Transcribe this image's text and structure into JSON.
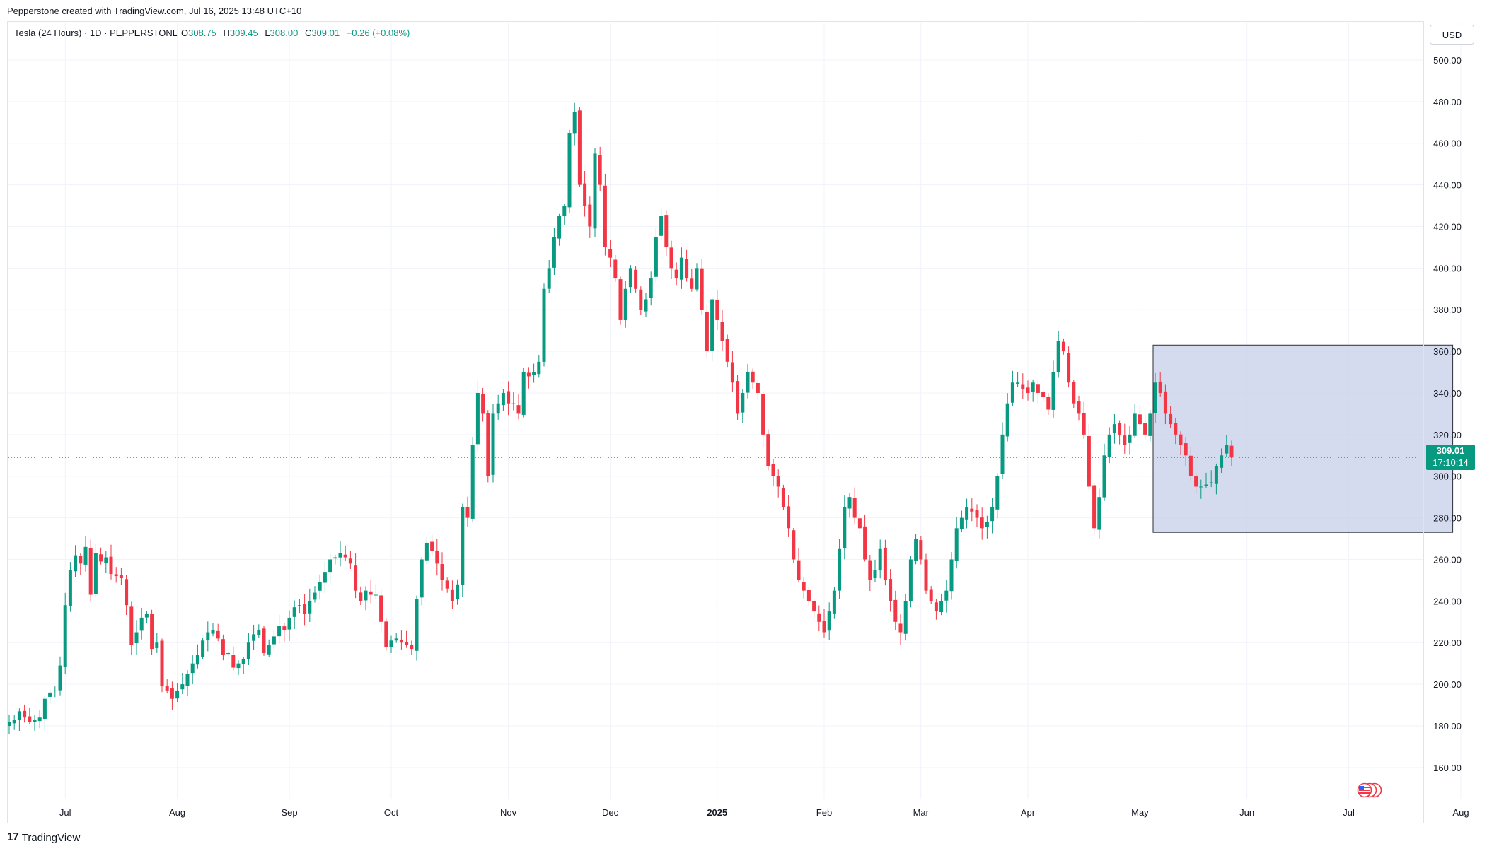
{
  "header": {
    "credit": "Pepperstone created with TradingView.com, Jul 16, 2025 13:48 UTC+10"
  },
  "legend": {
    "symbol": "Tesla (24 Hours) · 1D · PEPPERSTONE",
    "o_label": "O",
    "o_value": "308.75",
    "h_label": "H",
    "h_value": "309.45",
    "l_label": "L",
    "l_value": "308.00",
    "c_label": "C",
    "c_value": "309.01",
    "change": "+0.26 (+0.08%)"
  },
  "currency_button": "USD",
  "last_price": {
    "value": "309.01",
    "countdown": "17:10:14"
  },
  "footer": {
    "brand": "TradingView",
    "logo_mark": "17"
  },
  "colors": {
    "up": "#089981",
    "down": "#f23645",
    "grid": "#f0f3fa",
    "box_fill": "#c5cde8",
    "box_border": "#2a2e39"
  },
  "icons": {
    "flag": "us-flag-events-icon",
    "logo": "tradingview-logo-icon"
  },
  "chart_data": {
    "type": "candlestick",
    "y_axis_ticks": [
      160,
      180,
      200,
      220,
      240,
      260,
      280,
      300,
      320,
      340,
      360,
      380,
      400,
      420,
      440,
      460,
      480,
      500
    ],
    "ylim": [
      145,
      518
    ],
    "x_axis_labels": [
      {
        "label": "Jul",
        "index": 11,
        "bold": false
      },
      {
        "label": "Aug",
        "index": 33,
        "bold": false
      },
      {
        "label": "Sep",
        "index": 55,
        "bold": false
      },
      {
        "label": "Oct",
        "index": 75,
        "bold": false
      },
      {
        "label": "Nov",
        "index": 98,
        "bold": false
      },
      {
        "label": "Dec",
        "index": 118,
        "bold": false
      },
      {
        "label": "2025",
        "index": 139,
        "bold": true
      },
      {
        "label": "Feb",
        "index": 160,
        "bold": false
      },
      {
        "label": "Mar",
        "index": 179,
        "bold": false
      },
      {
        "label": "Apr",
        "index": 200,
        "bold": false
      },
      {
        "label": "May",
        "index": 222,
        "bold": false
      },
      {
        "label": "Jun",
        "index": 243,
        "bold": false
      },
      {
        "label": "Jul",
        "index": 263,
        "bold": false
      },
      {
        "label": "Aug",
        "index": 285,
        "bold": false
      }
    ],
    "closes": [
      182,
      183,
      187,
      184,
      182,
      183,
      184,
      193,
      196,
      197,
      209,
      238,
      255,
      262,
      258,
      266,
      243,
      263,
      259,
      261,
      253,
      252,
      251,
      238,
      219,
      225,
      232,
      234,
      217,
      220,
      199,
      197,
      193,
      197,
      200,
      205,
      210,
      214,
      221,
      225,
      226,
      222,
      214,
      215,
      208,
      210,
      212,
      220,
      224,
      226,
      215,
      219,
      223,
      228,
      226,
      232,
      237,
      238,
      234,
      240,
      244,
      249,
      254,
      260,
      261,
      263,
      261,
      258,
      245,
      240,
      245,
      243,
      243,
      230,
      218,
      221,
      222,
      220,
      219,
      217,
      241,
      260,
      268,
      264,
      258,
      250,
      246,
      240,
      248,
      285,
      280,
      315,
      340,
      330,
      300,
      330,
      335,
      340,
      335,
      335,
      330,
      350,
      348,
      350,
      355,
      390,
      400,
      415,
      425,
      430,
      465,
      475,
      440,
      430,
      420,
      455,
      440,
      410,
      405,
      395,
      375,
      390,
      400,
      390,
      380,
      385,
      395,
      415,
      425,
      410,
      400,
      395,
      405,
      395,
      390,
      400,
      380,
      360,
      385,
      375,
      365,
      355,
      345,
      330,
      340,
      350,
      345,
      340,
      320,
      305,
      300,
      295,
      285,
      275,
      260,
      250,
      245,
      240,
      235,
      230,
      225,
      235,
      245,
      265,
      285,
      290,
      280,
      275,
      260,
      250,
      255,
      265,
      250,
      240,
      230,
      225,
      240,
      260,
      270,
      260,
      245,
      240,
      235,
      240,
      245,
      260,
      275,
      280,
      285,
      283,
      280,
      275,
      278,
      285,
      300,
      320,
      335,
      345,
      345,
      342,
      340,
      345,
      340,
      338,
      332,
      350,
      365,
      360,
      345,
      335,
      330,
      320,
      295,
      275,
      290,
      310,
      320,
      325,
      320,
      315,
      320,
      330,
      325,
      320,
      330,
      345,
      340,
      330,
      325,
      320,
      315,
      310,
      300,
      295,
      295,
      296,
      297,
      305,
      310,
      315,
      309
    ],
    "last_close": 309.01,
    "highlight_box": {
      "start_index": 225,
      "end_index": 283,
      "low": 273,
      "high": 363
    }
  }
}
